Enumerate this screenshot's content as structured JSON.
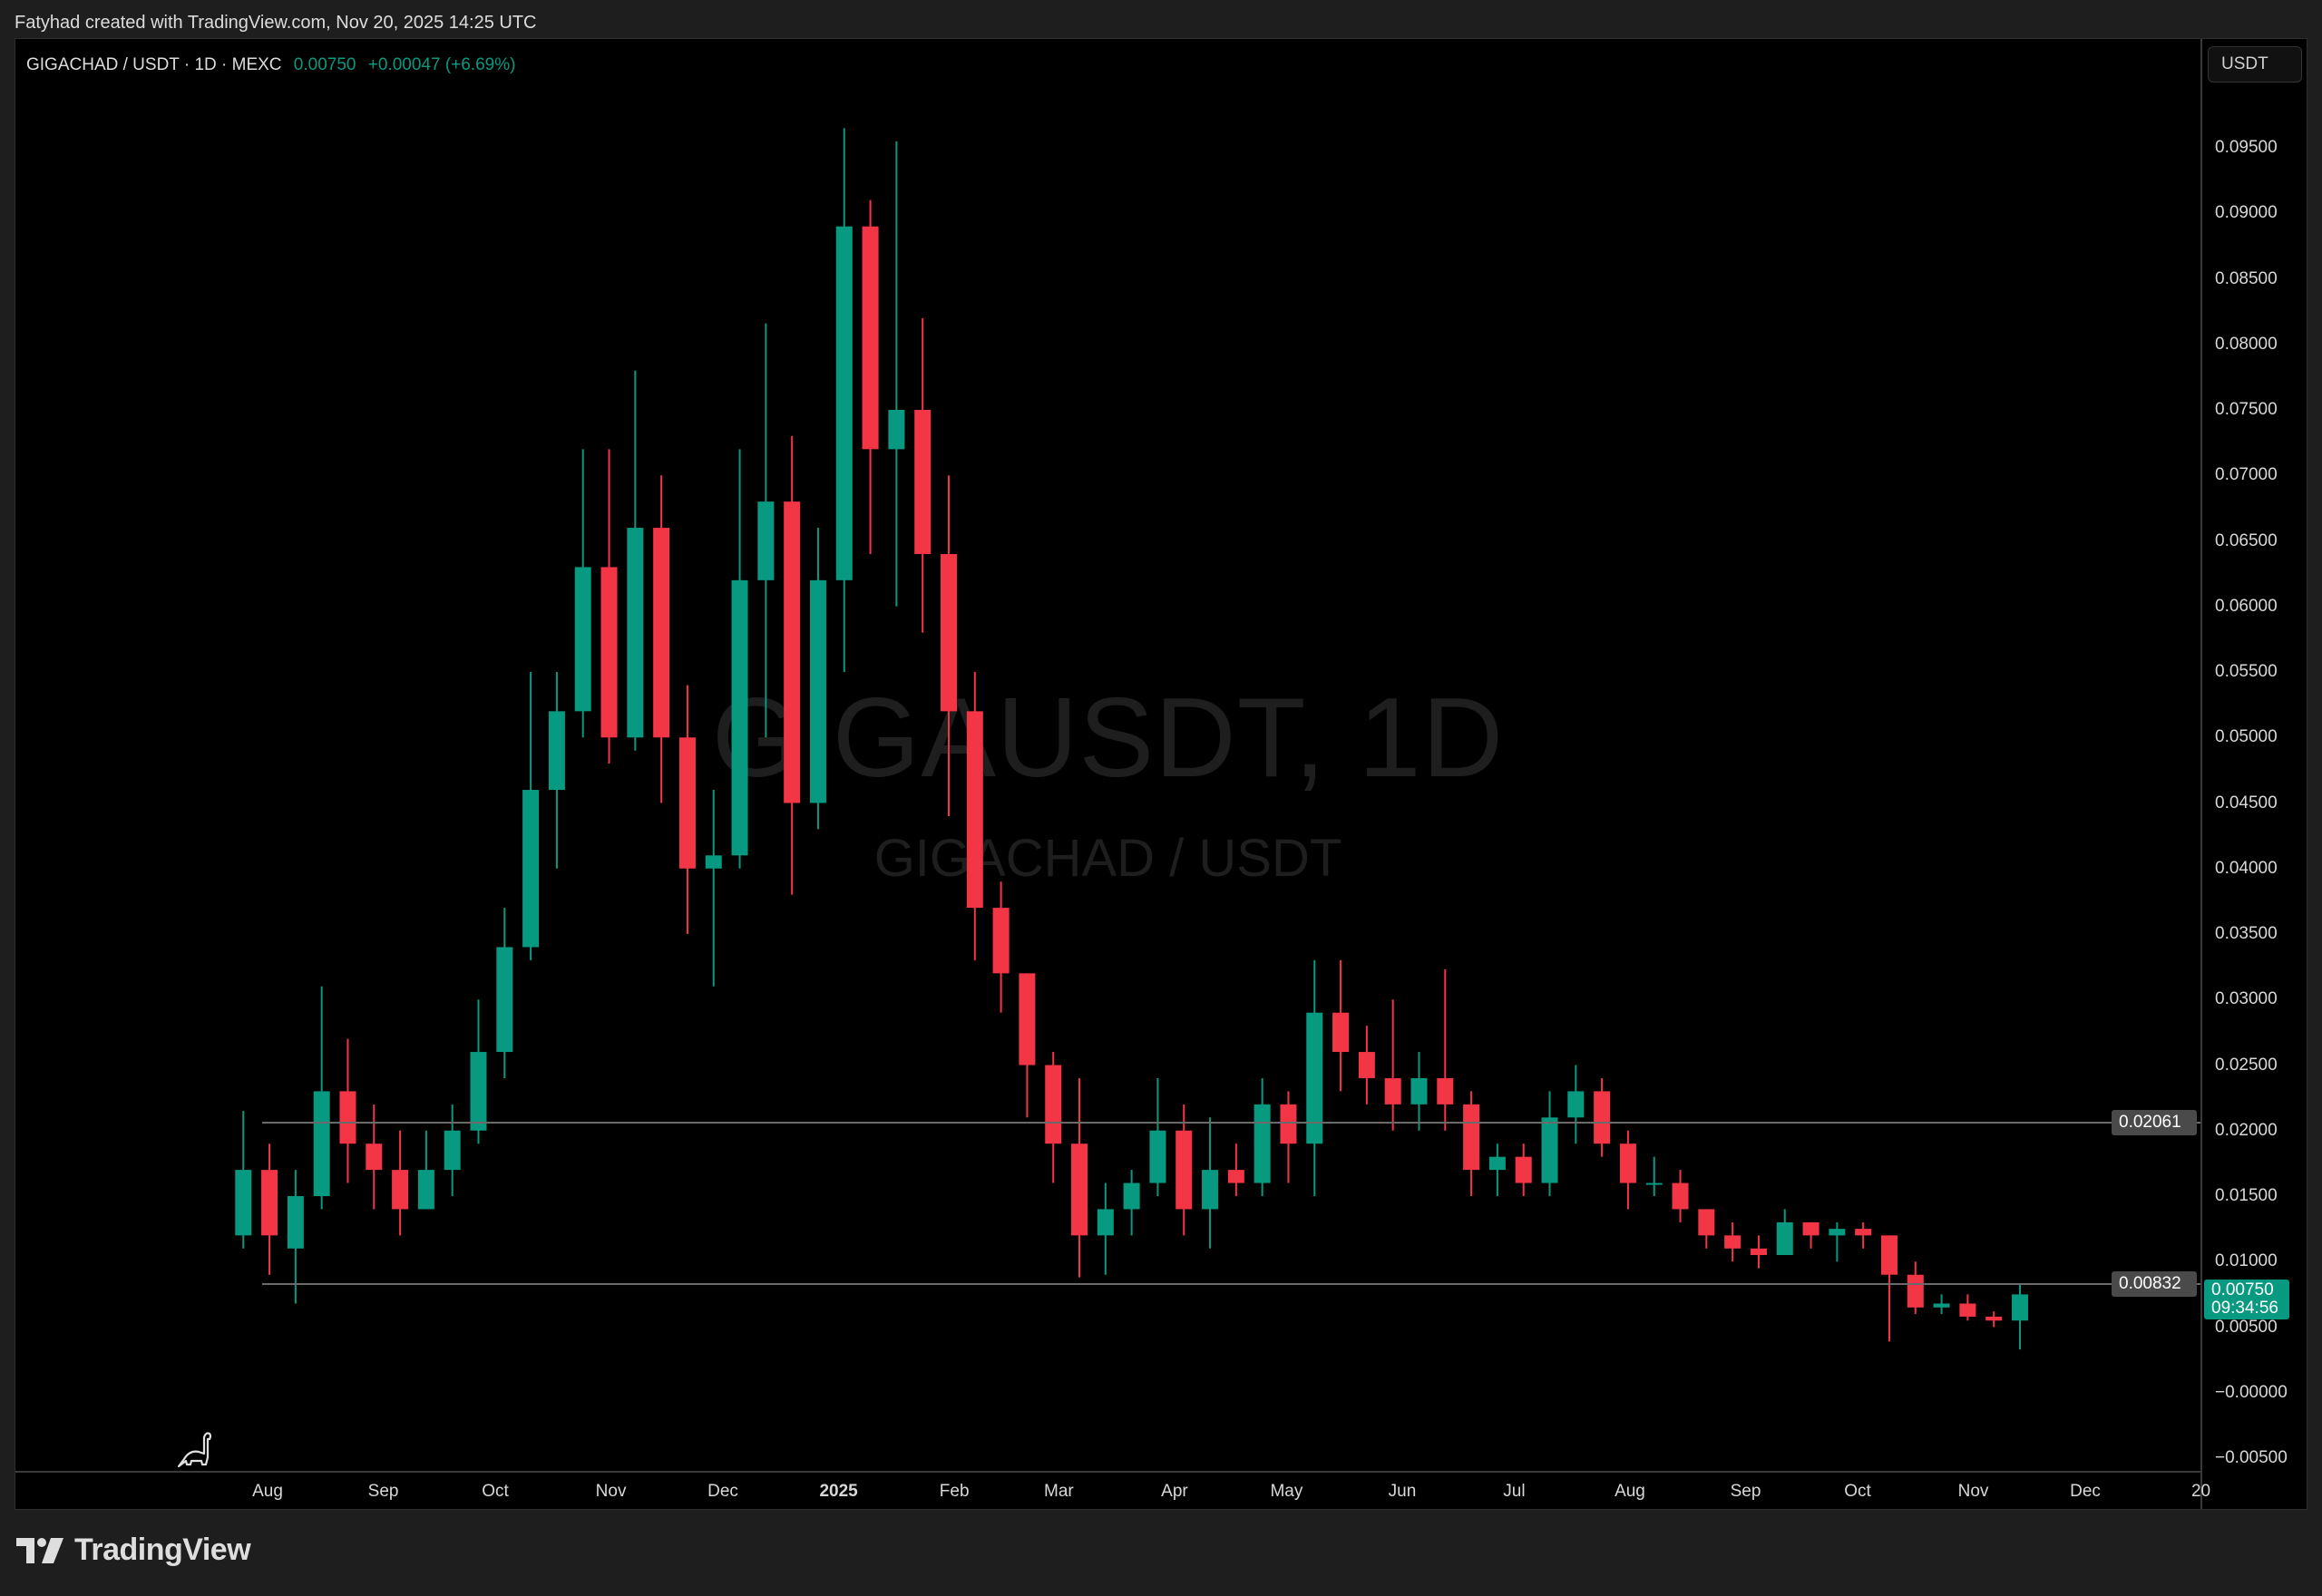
{
  "header": {
    "credit": "Fatyhad created with TradingView.com, Nov 20, 2025 14:25 UTC"
  },
  "legend": {
    "symbol": "GIGACHAD / USDT · 1D · MEXC",
    "last": "0.00750",
    "change": "+0.00047 (+6.69%)"
  },
  "watermark": {
    "ticker": "GIGAUSDT, 1D",
    "name": "GIGACHAD / USDT"
  },
  "currency_button": "USDT",
  "brand": "TradingView",
  "colors": {
    "up": "#089981",
    "down": "#f23645",
    "background": "#000000",
    "level_line": "#6a6a6a"
  },
  "chart_data": {
    "type": "candlestick",
    "note_interval": "1W",
    "start": "2024-07-22",
    "ylim": [
      -0.005,
      0.1
    ],
    "grid": false,
    "y_ticks": [
      "0.09500",
      "0.09000",
      "0.08500",
      "0.08000",
      "0.07500",
      "0.07000",
      "0.06500",
      "0.06000",
      "0.05500",
      "0.05000",
      "0.04500",
      "0.04000",
      "0.03500",
      "0.03000",
      "0.02500",
      "0.02000",
      "0.01500",
      "0.01000",
      "0.00500",
      "−0.00000",
      "−0.00500"
    ],
    "y_tick_values": [
      0.095,
      0.09,
      0.085,
      0.08,
      0.075,
      0.07,
      0.065,
      0.06,
      0.055,
      0.05,
      0.045,
      0.04,
      0.035,
      0.03,
      0.025,
      0.02,
      0.015,
      0.01,
      0.005,
      0,
      -0.005
    ],
    "x_ticks": [
      {
        "label": "Aug",
        "date": "2024-08-01"
      },
      {
        "label": "Sep",
        "date": "2024-09-01"
      },
      {
        "label": "Oct",
        "date": "2024-10-01"
      },
      {
        "label": "Nov",
        "date": "2024-11-01"
      },
      {
        "label": "Dec",
        "date": "2024-12-01"
      },
      {
        "label": "2025",
        "date": "2025-01-01",
        "bold": true
      },
      {
        "label": "Feb",
        "date": "2025-02-01"
      },
      {
        "label": "Mar",
        "date": "2025-03-01"
      },
      {
        "label": "Apr",
        "date": "2025-04-01"
      },
      {
        "label": "May",
        "date": "2025-05-01"
      },
      {
        "label": "Jun",
        "date": "2025-06-01"
      },
      {
        "label": "Jul",
        "date": "2025-07-01"
      },
      {
        "label": "Aug",
        "date": "2025-08-01"
      },
      {
        "label": "Sep",
        "date": "2025-09-01"
      },
      {
        "label": "Oct",
        "date": "2025-10-01"
      },
      {
        "label": "Nov",
        "date": "2025-11-01"
      },
      {
        "label": "Dec",
        "date": "2025-12-01"
      },
      {
        "label": "20",
        "date": "2026-01-01"
      }
    ],
    "ohlc": [
      [
        0.012,
        0.0215,
        0.011,
        0.017
      ],
      [
        0.017,
        0.019,
        0.009,
        0.012
      ],
      [
        0.011,
        0.017,
        0.0068,
        0.015
      ],
      [
        0.015,
        0.031,
        0.014,
        0.023
      ],
      [
        0.023,
        0.027,
        0.016,
        0.019
      ],
      [
        0.019,
        0.022,
        0.014,
        0.017
      ],
      [
        0.017,
        0.02,
        0.012,
        0.014
      ],
      [
        0.014,
        0.02,
        0.014,
        0.017
      ],
      [
        0.017,
        0.022,
        0.015,
        0.02
      ],
      [
        0.02,
        0.03,
        0.019,
        0.026
      ],
      [
        0.026,
        0.037,
        0.024,
        0.034
      ],
      [
        0.034,
        0.055,
        0.033,
        0.046
      ],
      [
        0.046,
        0.055,
        0.04,
        0.052
      ],
      [
        0.052,
        0.072,
        0.05,
        0.063
      ],
      [
        0.063,
        0.072,
        0.048,
        0.05
      ],
      [
        0.05,
        0.078,
        0.049,
        0.066
      ],
      [
        0.066,
        0.07,
        0.045,
        0.05
      ],
      [
        0.05,
        0.054,
        0.035,
        0.04
      ],
      [
        0.04,
        0.046,
        0.031,
        0.041
      ],
      [
        0.041,
        0.072,
        0.04,
        0.062
      ],
      [
        0.062,
        0.0816,
        0.05,
        0.068
      ],
      [
        0.068,
        0.073,
        0.038,
        0.045
      ],
      [
        0.045,
        0.066,
        0.043,
        0.062
      ],
      [
        0.062,
        0.0965,
        0.055,
        0.089
      ],
      [
        0.089,
        0.091,
        0.064,
        0.072
      ],
      [
        0.072,
        0.0955,
        0.06,
        0.075
      ],
      [
        0.075,
        0.082,
        0.058,
        0.064
      ],
      [
        0.064,
        0.07,
        0.044,
        0.052
      ],
      [
        0.052,
        0.055,
        0.033,
        0.037
      ],
      [
        0.037,
        0.039,
        0.029,
        0.032
      ],
      [
        0.032,
        0.032,
        0.021,
        0.025
      ],
      [
        0.025,
        0.026,
        0.016,
        0.019
      ],
      [
        0.019,
        0.024,
        0.0088,
        0.012
      ],
      [
        0.012,
        0.016,
        0.009,
        0.014
      ],
      [
        0.014,
        0.017,
        0.012,
        0.016
      ],
      [
        0.016,
        0.024,
        0.015,
        0.02
      ],
      [
        0.02,
        0.022,
        0.012,
        0.014
      ],
      [
        0.014,
        0.021,
        0.011,
        0.017
      ],
      [
        0.017,
        0.019,
        0.015,
        0.016
      ],
      [
        0.016,
        0.024,
        0.015,
        0.022
      ],
      [
        0.022,
        0.023,
        0.016,
        0.019
      ],
      [
        0.019,
        0.033,
        0.015,
        0.029
      ],
      [
        0.029,
        0.033,
        0.023,
        0.026
      ],
      [
        0.026,
        0.028,
        0.022,
        0.024
      ],
      [
        0.024,
        0.03,
        0.02,
        0.022
      ],
      [
        0.022,
        0.026,
        0.02,
        0.024
      ],
      [
        0.024,
        0.0323,
        0.02,
        0.022
      ],
      [
        0.022,
        0.023,
        0.015,
        0.017
      ],
      [
        0.017,
        0.019,
        0.015,
        0.018
      ],
      [
        0.018,
        0.019,
        0.015,
        0.016
      ],
      [
        0.016,
        0.023,
        0.015,
        0.021
      ],
      [
        0.021,
        0.025,
        0.019,
        0.023
      ],
      [
        0.023,
        0.024,
        0.018,
        0.019
      ],
      [
        0.019,
        0.02,
        0.014,
        0.016
      ],
      [
        0.016,
        0.018,
        0.015,
        0.016
      ],
      [
        0.016,
        0.017,
        0.013,
        0.014
      ],
      [
        0.014,
        0.014,
        0.011,
        0.012
      ],
      [
        0.012,
        0.013,
        0.01,
        0.011
      ],
      [
        0.011,
        0.012,
        0.0095,
        0.0105
      ],
      [
        0.0105,
        0.014,
        0.0105,
        0.013
      ],
      [
        0.013,
        0.013,
        0.011,
        0.012
      ],
      [
        0.012,
        0.013,
        0.01,
        0.0125
      ],
      [
        0.0125,
        0.013,
        0.011,
        0.012
      ],
      [
        0.012,
        0.012,
        0.0039,
        0.009
      ],
      [
        0.009,
        0.01,
        0.006,
        0.0065
      ],
      [
        0.0065,
        0.0075,
        0.006,
        0.0068
      ],
      [
        0.0068,
        0.0075,
        0.0055,
        0.0058
      ],
      [
        0.0058,
        0.0062,
        0.005,
        0.0055
      ],
      [
        0.0055,
        0.0083,
        0.0033,
        0.0075
      ]
    ],
    "levels": [
      {
        "value": 0.02061,
        "label": "0.02061"
      },
      {
        "value": 0.00832,
        "label": "0.00832"
      }
    ],
    "current": {
      "value": 0.0075,
      "label": "0.00750",
      "countdown": "09:34:56"
    }
  }
}
